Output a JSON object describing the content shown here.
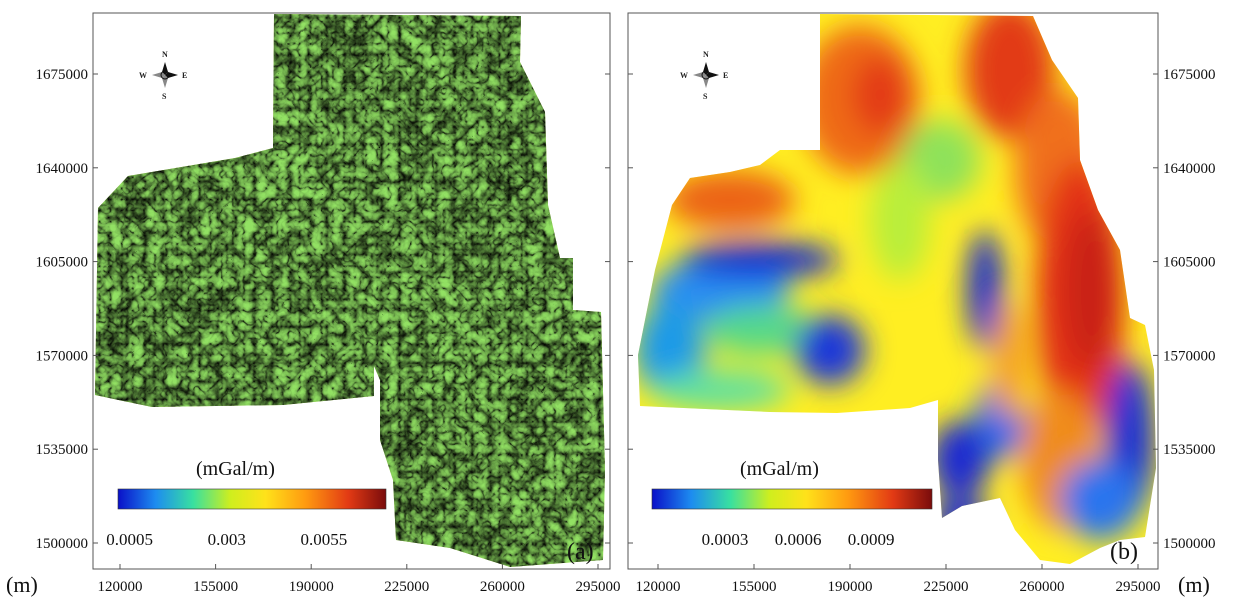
{
  "colors": {
    "scale": [
      "#0a10c8",
      "#1d8cf0",
      "#38e0a0",
      "#cfee1e",
      "#ffe21a",
      "#ff9a10",
      "#e23a14",
      "#7a0c0c"
    ],
    "frame": "#555555",
    "background": "#ffffff"
  },
  "axes": {
    "easting": {
      "range": [
        117000,
        306000
      ],
      "ticks": [
        120000,
        155000,
        190000,
        225000,
        260000,
        295000
      ],
      "tick_labels": [
        "120000",
        "155000",
        "190000",
        "225000",
        "260000",
        "295000"
      ]
    },
    "northing": {
      "range": [
        1484000,
        1705000
      ],
      "ticks": [
        1500000,
        1535000,
        1570000,
        1605000,
        1640000,
        1675000
      ],
      "tick_labels": [
        "1500000",
        "1535000",
        "1570000",
        "1605000",
        "1640000",
        "1675000"
      ]
    }
  },
  "panels": [
    {
      "id": "a",
      "tag": "(a)",
      "colorbar_title": "(mGal/m)",
      "colorbar_tick_labels": [
        "0.0005",
        "0.003",
        "0.0055"
      ],
      "colorbar_tick_values": [
        0.0005,
        0.003,
        0.0055
      ],
      "colorbar_range": [
        0.0002,
        0.0071
      ],
      "north_arrow_letters": [
        "N",
        "S",
        "W",
        "E"
      ]
    },
    {
      "id": "b",
      "tag": "(b)",
      "colorbar_title": "(mGal/m)",
      "colorbar_tick_labels": [
        "0.0003",
        "0.0006",
        "0.0009"
      ],
      "colorbar_tick_values": [
        0.0003,
        0.0006,
        0.0009
      ],
      "colorbar_range": [
        0.0,
        0.00115
      ],
      "north_arrow_letters": [
        "N",
        "S",
        "W",
        "E"
      ]
    }
  ],
  "unit_labels": {
    "left": "(m)",
    "right": "(m)"
  }
}
